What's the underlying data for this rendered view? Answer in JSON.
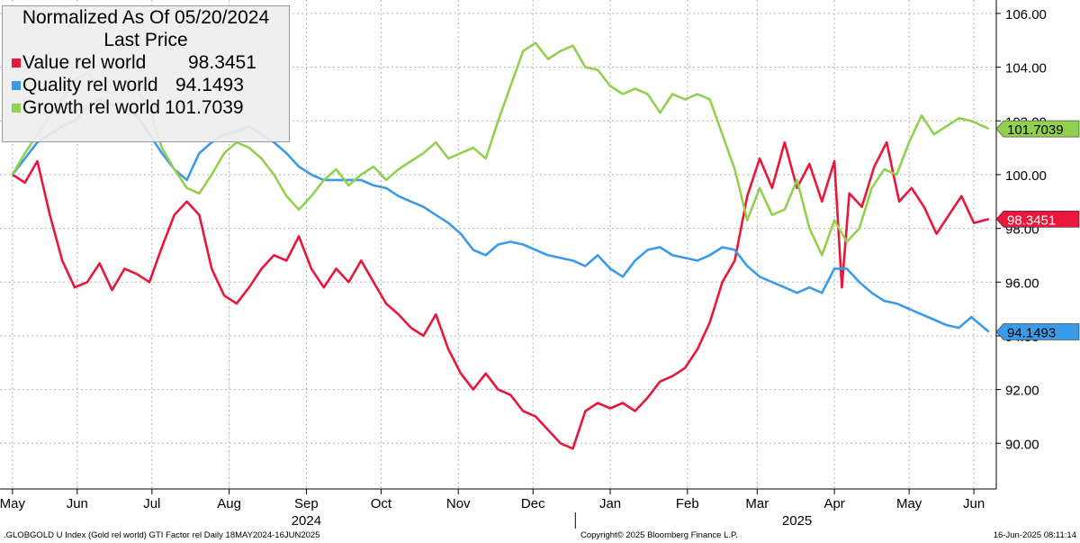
{
  "legend": {
    "title_line1": "Normalized As Of 05/20/2024",
    "title_line2": "Last Price",
    "items": [
      {
        "name": "Value rel world",
        "value": "98.3451",
        "color": "#e8173b"
      },
      {
        "name": "Quality rel world",
        "value": "94.1493",
        "color": "#3b9be8"
      },
      {
        "name": "Growth rel world",
        "value": "101.7039",
        "color": "#92d050"
      }
    ]
  },
  "footer": {
    "left": ".GLOBGOLD U Index (Gold rel world) GTI Factor rel  Daily 18MAY2024-16JUN2025",
    "center": "Copyright© 2025 Bloomberg Finance L.P.",
    "right": "16-Jun-2025 08:11:14"
  },
  "chart_data": {
    "type": "line",
    "ylim": [
      88.3,
      106.5
    ],
    "yticks": [
      90,
      92,
      94,
      96,
      98,
      100,
      102,
      104,
      106
    ],
    "ytick_labels": [
      "90.00",
      "92.00",
      "94.00",
      "96.00",
      "98.00",
      "100.00",
      "102.00",
      "104.00",
      "106.00"
    ],
    "x_ticks": [
      {
        "date": "2024-05-20",
        "label": "May"
      },
      {
        "date": "2024-06-15",
        "label": "Jun"
      },
      {
        "date": "2024-07-15",
        "label": "Jul"
      },
      {
        "date": "2024-08-15",
        "label": "Aug"
      },
      {
        "date": "2024-09-15",
        "label": "Sep"
      },
      {
        "date": "2024-10-15",
        "label": "Oct"
      },
      {
        "date": "2024-11-15",
        "label": "Nov"
      },
      {
        "date": "2024-12-15",
        "label": "Dec"
      },
      {
        "date": "2025-01-15",
        "label": "Jan"
      },
      {
        "date": "2025-02-15",
        "label": "Feb"
      },
      {
        "date": "2025-03-15",
        "label": "Mar"
      },
      {
        "date": "2025-04-15",
        "label": "Apr"
      },
      {
        "date": "2025-05-15",
        "label": "May"
      },
      {
        "date": "2025-06-10",
        "label": "Jun"
      }
    ],
    "year_labels": [
      {
        "date": "2024-09-15",
        "label": "2024"
      },
      {
        "date": "2025-03-31",
        "label": "2025"
      }
    ],
    "grid": true,
    "legend_position": "top-left",
    "series": [
      {
        "name": "Value rel world",
        "color": "#e8173b",
        "last_label": "98.3451",
        "points": [
          [
            "2024-05-20",
            100.0
          ],
          [
            "2024-05-25",
            99.7
          ],
          [
            "2024-05-30",
            100.5
          ],
          [
            "2024-06-04",
            98.5
          ],
          [
            "2024-06-09",
            96.8
          ],
          [
            "2024-06-14",
            95.8
          ],
          [
            "2024-06-19",
            96.0
          ],
          [
            "2024-06-24",
            96.7
          ],
          [
            "2024-06-29",
            95.7
          ],
          [
            "2024-07-04",
            96.5
          ],
          [
            "2024-07-09",
            96.3
          ],
          [
            "2024-07-14",
            96.0
          ],
          [
            "2024-07-19",
            97.3
          ],
          [
            "2024-07-24",
            98.5
          ],
          [
            "2024-07-29",
            99.0
          ],
          [
            "2024-08-03",
            98.5
          ],
          [
            "2024-08-08",
            96.5
          ],
          [
            "2024-08-13",
            95.5
          ],
          [
            "2024-08-18",
            95.2
          ],
          [
            "2024-08-23",
            95.8
          ],
          [
            "2024-08-28",
            96.5
          ],
          [
            "2024-09-02",
            97.0
          ],
          [
            "2024-09-07",
            96.8
          ],
          [
            "2024-09-12",
            97.7
          ],
          [
            "2024-09-17",
            96.5
          ],
          [
            "2024-09-22",
            95.8
          ],
          [
            "2024-09-27",
            96.5
          ],
          [
            "2024-10-02",
            96.0
          ],
          [
            "2024-10-07",
            96.8
          ],
          [
            "2024-10-12",
            96.0
          ],
          [
            "2024-10-17",
            95.2
          ],
          [
            "2024-10-22",
            94.8
          ],
          [
            "2024-10-27",
            94.3
          ],
          [
            "2024-11-01",
            94.0
          ],
          [
            "2024-11-06",
            94.8
          ],
          [
            "2024-11-11",
            93.5
          ],
          [
            "2024-11-16",
            92.6
          ],
          [
            "2024-11-21",
            92.0
          ],
          [
            "2024-11-26",
            92.6
          ],
          [
            "2024-12-01",
            92.0
          ],
          [
            "2024-12-06",
            91.8
          ],
          [
            "2024-12-11",
            91.2
          ],
          [
            "2024-12-16",
            91.0
          ],
          [
            "2024-12-21",
            90.5
          ],
          [
            "2024-12-26",
            90.0
          ],
          [
            "2024-12-31",
            89.8
          ],
          [
            "2025-01-05",
            91.2
          ],
          [
            "2025-01-10",
            91.5
          ],
          [
            "2025-01-15",
            91.3
          ],
          [
            "2025-01-20",
            91.5
          ],
          [
            "2025-01-25",
            91.2
          ],
          [
            "2025-01-30",
            91.7
          ],
          [
            "2025-02-04",
            92.3
          ],
          [
            "2025-02-09",
            92.5
          ],
          [
            "2025-02-14",
            92.8
          ],
          [
            "2025-02-19",
            93.5
          ],
          [
            "2025-02-24",
            94.5
          ],
          [
            "2025-03-01",
            96.0
          ],
          [
            "2025-03-06",
            96.8
          ],
          [
            "2025-03-11",
            99.2
          ],
          [
            "2025-03-16",
            100.6
          ],
          [
            "2025-03-21",
            99.5
          ],
          [
            "2025-03-26",
            101.2
          ],
          [
            "2025-03-31",
            99.5
          ],
          [
            "2025-04-05",
            100.4
          ],
          [
            "2025-04-10",
            99.0
          ],
          [
            "2025-04-15",
            100.5
          ],
          [
            "2025-04-18",
            95.8
          ],
          [
            "2025-04-21",
            99.3
          ],
          [
            "2025-04-26",
            98.8
          ],
          [
            "2025-05-01",
            100.3
          ],
          [
            "2025-05-06",
            101.2
          ],
          [
            "2025-05-11",
            99.0
          ],
          [
            "2025-05-16",
            99.5
          ],
          [
            "2025-05-21",
            98.8
          ],
          [
            "2025-05-26",
            97.8
          ],
          [
            "2025-05-31",
            98.5
          ],
          [
            "2025-06-05",
            99.2
          ],
          [
            "2025-06-10",
            98.2
          ],
          [
            "2025-06-16",
            98.3451
          ]
        ]
      },
      {
        "name": "Quality rel world",
        "color": "#3b9be8",
        "last_label": "94.1493",
        "points": [
          [
            "2024-05-20",
            100.0
          ],
          [
            "2024-05-25",
            100.6
          ],
          [
            "2024-05-30",
            101.2
          ],
          [
            "2024-06-04",
            101.5
          ],
          [
            "2024-06-09",
            101.8
          ],
          [
            "2024-06-14",
            102.0
          ],
          [
            "2024-06-19",
            102.5
          ],
          [
            "2024-06-24",
            102.8
          ],
          [
            "2024-06-29",
            102.6
          ],
          [
            "2024-07-04",
            102.4
          ],
          [
            "2024-07-09",
            102.2
          ],
          [
            "2024-07-14",
            101.5
          ],
          [
            "2024-07-19",
            100.8
          ],
          [
            "2024-07-24",
            100.2
          ],
          [
            "2024-07-29",
            99.8
          ],
          [
            "2024-08-03",
            100.8
          ],
          [
            "2024-08-08",
            101.2
          ],
          [
            "2024-08-13",
            101.5
          ],
          [
            "2024-08-18",
            101.6
          ],
          [
            "2024-08-23",
            101.8
          ],
          [
            "2024-08-28",
            101.5
          ],
          [
            "2024-09-02",
            101.2
          ],
          [
            "2024-09-07",
            100.8
          ],
          [
            "2024-09-12",
            100.3
          ],
          [
            "2024-09-17",
            100.0
          ],
          [
            "2024-09-22",
            99.8
          ],
          [
            "2024-09-27",
            99.8
          ],
          [
            "2024-10-02",
            99.8
          ],
          [
            "2024-10-07",
            99.8
          ],
          [
            "2024-10-12",
            99.6
          ],
          [
            "2024-10-17",
            99.5
          ],
          [
            "2024-10-22",
            99.2
          ],
          [
            "2024-10-27",
            99.0
          ],
          [
            "2024-11-01",
            98.8
          ],
          [
            "2024-11-06",
            98.5
          ],
          [
            "2024-11-11",
            98.2
          ],
          [
            "2024-11-16",
            97.8
          ],
          [
            "2024-11-21",
            97.2
          ],
          [
            "2024-11-26",
            97.0
          ],
          [
            "2024-12-01",
            97.4
          ],
          [
            "2024-12-06",
            97.5
          ],
          [
            "2024-12-11",
            97.4
          ],
          [
            "2024-12-16",
            97.2
          ],
          [
            "2024-12-21",
            97.0
          ],
          [
            "2024-12-26",
            96.9
          ],
          [
            "2024-12-31",
            96.8
          ],
          [
            "2025-01-05",
            96.6
          ],
          [
            "2025-01-10",
            97.0
          ],
          [
            "2025-01-15",
            96.5
          ],
          [
            "2025-01-20",
            96.2
          ],
          [
            "2025-01-25",
            96.8
          ],
          [
            "2025-01-30",
            97.2
          ],
          [
            "2025-02-04",
            97.3
          ],
          [
            "2025-02-09",
            97.0
          ],
          [
            "2025-02-14",
            96.9
          ],
          [
            "2025-02-19",
            96.8
          ],
          [
            "2025-02-24",
            97.0
          ],
          [
            "2025-03-01",
            97.3
          ],
          [
            "2025-03-06",
            97.2
          ],
          [
            "2025-03-11",
            96.6
          ],
          [
            "2025-03-16",
            96.2
          ],
          [
            "2025-03-21",
            96.0
          ],
          [
            "2025-03-26",
            95.8
          ],
          [
            "2025-03-31",
            95.6
          ],
          [
            "2025-04-05",
            95.8
          ],
          [
            "2025-04-10",
            95.6
          ],
          [
            "2025-04-15",
            96.5
          ],
          [
            "2025-04-20",
            96.5
          ],
          [
            "2025-04-25",
            96.0
          ],
          [
            "2025-04-30",
            95.6
          ],
          [
            "2025-05-05",
            95.3
          ],
          [
            "2025-05-10",
            95.2
          ],
          [
            "2025-05-15",
            95.0
          ],
          [
            "2025-05-20",
            94.8
          ],
          [
            "2025-05-25",
            94.6
          ],
          [
            "2025-05-30",
            94.4
          ],
          [
            "2025-06-04",
            94.3
          ],
          [
            "2025-06-09",
            94.7
          ],
          [
            "2025-06-16",
            94.1493
          ]
        ]
      },
      {
        "name": "Growth rel world",
        "color": "#92d050",
        "last_label": "101.7039",
        "points": [
          [
            "2024-05-20",
            100.0
          ],
          [
            "2024-05-25",
            100.8
          ],
          [
            "2024-05-30",
            101.5
          ],
          [
            "2024-06-04",
            102.2
          ],
          [
            "2024-06-09",
            102.8
          ],
          [
            "2024-06-14",
            103.5
          ],
          [
            "2024-06-19",
            103.8
          ],
          [
            "2024-06-24",
            103.2
          ],
          [
            "2024-06-29",
            103.0
          ],
          [
            "2024-07-04",
            103.5
          ],
          [
            "2024-07-09",
            103.1
          ],
          [
            "2024-07-14",
            102.5
          ],
          [
            "2024-07-19",
            101.0
          ],
          [
            "2024-07-24",
            100.2
          ],
          [
            "2024-07-29",
            99.5
          ],
          [
            "2024-08-03",
            99.3
          ],
          [
            "2024-08-08",
            100.0
          ],
          [
            "2024-08-13",
            100.8
          ],
          [
            "2024-08-18",
            101.2
          ],
          [
            "2024-08-23",
            101.0
          ],
          [
            "2024-08-28",
            100.6
          ],
          [
            "2024-09-02",
            100.0
          ],
          [
            "2024-09-07",
            99.2
          ],
          [
            "2024-09-12",
            98.7
          ],
          [
            "2024-09-17",
            99.2
          ],
          [
            "2024-09-22",
            99.8
          ],
          [
            "2024-09-27",
            100.2
          ],
          [
            "2024-10-02",
            99.6
          ],
          [
            "2024-10-07",
            100.0
          ],
          [
            "2024-10-12",
            100.3
          ],
          [
            "2024-10-17",
            99.8
          ],
          [
            "2024-10-22",
            100.2
          ],
          [
            "2024-10-27",
            100.5
          ],
          [
            "2024-11-01",
            100.8
          ],
          [
            "2024-11-06",
            101.2
          ],
          [
            "2024-11-11",
            100.6
          ],
          [
            "2024-11-16",
            100.8
          ],
          [
            "2024-11-21",
            101.0
          ],
          [
            "2024-11-26",
            100.6
          ],
          [
            "2024-12-01",
            102.0
          ],
          [
            "2024-12-06",
            103.3
          ],
          [
            "2024-12-11",
            104.6
          ],
          [
            "2024-12-16",
            104.9
          ],
          [
            "2024-12-21",
            104.3
          ],
          [
            "2024-12-26",
            104.6
          ],
          [
            "2024-12-31",
            104.8
          ],
          [
            "2025-01-05",
            104.0
          ],
          [
            "2025-01-10",
            103.9
          ],
          [
            "2025-01-15",
            103.3
          ],
          [
            "2025-01-20",
            103.0
          ],
          [
            "2025-01-25",
            103.2
          ],
          [
            "2025-01-30",
            103.0
          ],
          [
            "2025-02-04",
            102.3
          ],
          [
            "2025-02-09",
            103.0
          ],
          [
            "2025-02-14",
            102.8
          ],
          [
            "2025-02-19",
            103.0
          ],
          [
            "2025-02-24",
            102.8
          ],
          [
            "2025-03-01",
            101.5
          ],
          [
            "2025-03-06",
            100.2
          ],
          [
            "2025-03-11",
            98.3
          ],
          [
            "2025-03-16",
            99.5
          ],
          [
            "2025-03-21",
            98.5
          ],
          [
            "2025-03-26",
            98.7
          ],
          [
            "2025-03-31",
            99.8
          ],
          [
            "2025-04-05",
            98.0
          ],
          [
            "2025-04-10",
            97.0
          ],
          [
            "2025-04-15",
            98.3
          ],
          [
            "2025-04-20",
            97.5
          ],
          [
            "2025-04-25",
            98.0
          ],
          [
            "2025-04-30",
            99.5
          ],
          [
            "2025-05-05",
            100.2
          ],
          [
            "2025-05-10",
            100.0
          ],
          [
            "2025-05-15",
            101.2
          ],
          [
            "2025-05-20",
            102.2
          ],
          [
            "2025-05-25",
            101.5
          ],
          [
            "2025-05-30",
            101.8
          ],
          [
            "2025-06-04",
            102.1
          ],
          [
            "2025-06-09",
            102.0
          ],
          [
            "2025-06-16",
            101.7039
          ]
        ]
      }
    ]
  }
}
